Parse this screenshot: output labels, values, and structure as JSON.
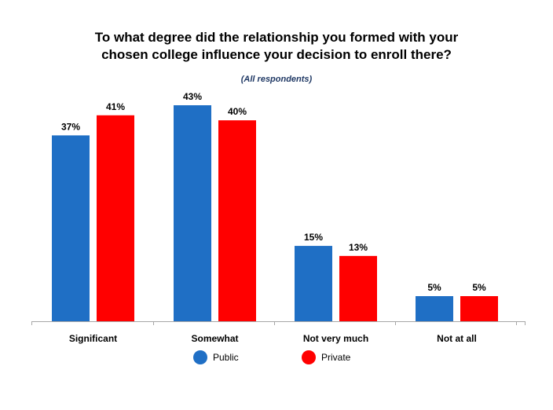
{
  "chart_data": {
    "type": "bar",
    "title_lines": [
      "To what degree did the relationship you formed with your",
      "chosen college influence your decision to enroll there?"
    ],
    "subtitle": "(All respondents)",
    "categories": [
      "Significant",
      "Somewhat",
      "Not very much",
      "Not at all"
    ],
    "series": [
      {
        "name": "Public",
        "values": [
          37,
          43,
          15,
          5
        ],
        "labels": [
          "37%",
          "43%",
          "15%",
          "5%"
        ],
        "color": "#1f6fc5"
      },
      {
        "name": "Private",
        "values": [
          41,
          40,
          13,
          5
        ],
        "labels": [
          "41%",
          "40%",
          "13%",
          "5%"
        ],
        "color": "#ff0000"
      }
    ],
    "ylim": [
      0,
      43
    ],
    "grid": false,
    "legend_position": "bottom"
  }
}
